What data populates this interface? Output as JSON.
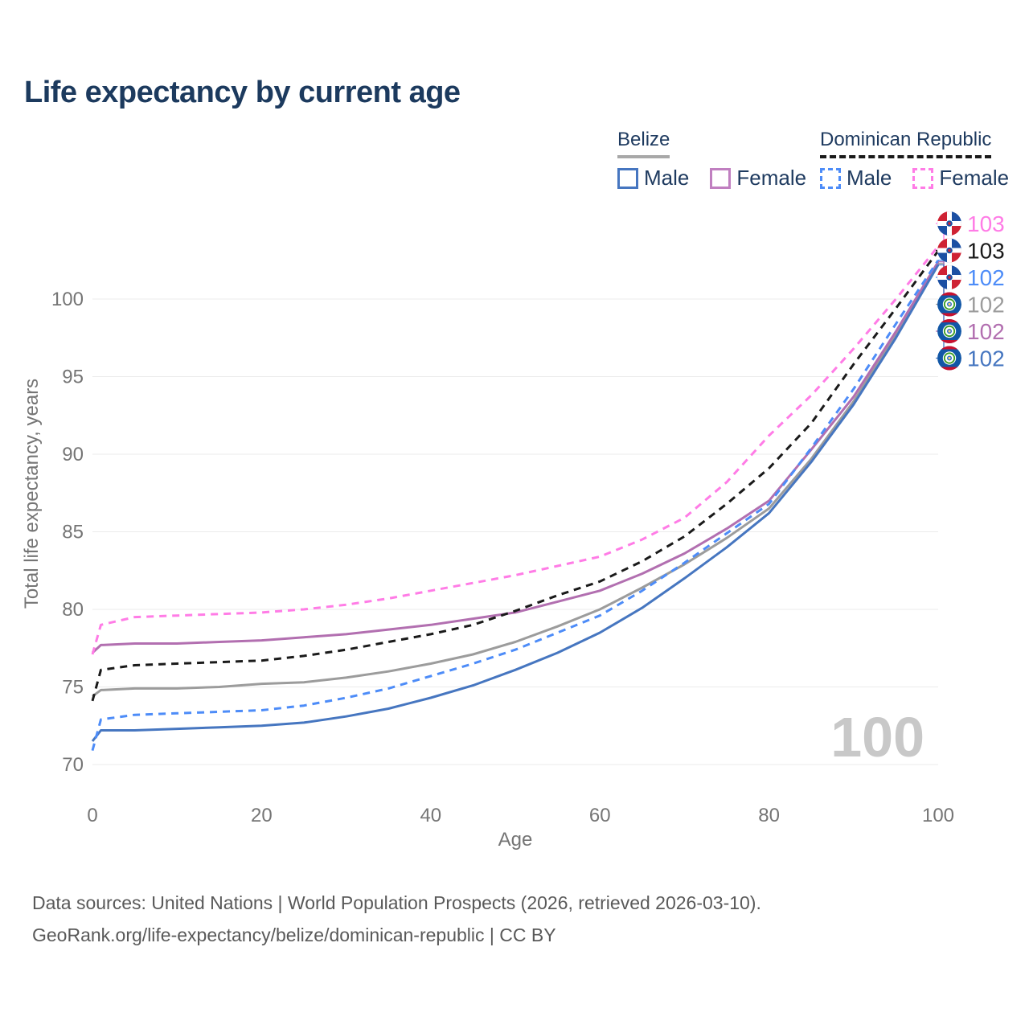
{
  "header": {
    "title": "Life expectancy by current age"
  },
  "legend": {
    "groups": [
      {
        "label": "Belize",
        "underline_style": "solid",
        "underline_color": "#a8a8a8",
        "items": [
          {
            "label": "Male",
            "color": "#4676c0",
            "dash": false
          },
          {
            "label": "Female",
            "color": "#c07fc0",
            "dash": false
          }
        ]
      },
      {
        "label": "Dominican Republic",
        "underline_style": "dashed",
        "underline_color": "#1a1a1a",
        "items": [
          {
            "label": "Male",
            "color": "#4d8cf8",
            "dash": true
          },
          {
            "label": "Female",
            "color": "#ff7ce6",
            "dash": true
          }
        ]
      }
    ]
  },
  "chart_data": {
    "type": "line",
    "title": "Life expectancy by current age",
    "xlabel": "Age",
    "ylabel": "Total life expectancy, years",
    "xlim": [
      0,
      100
    ],
    "ylim": [
      70,
      103.5
    ],
    "x_ticks": [
      0,
      20,
      40,
      60,
      80,
      100
    ],
    "y_ticks": [
      70,
      75,
      80,
      85,
      90,
      95,
      100
    ],
    "grid": "horizontal",
    "legend_position": "top-right",
    "age_label_watermark": "100",
    "x": [
      0,
      1,
      5,
      10,
      15,
      20,
      25,
      30,
      35,
      40,
      45,
      50,
      55,
      60,
      65,
      70,
      75,
      80,
      85,
      90,
      95,
      100
    ],
    "series": [
      {
        "id": "dr_female",
        "name": "Dominican Republic Female",
        "country": "Dominican Republic",
        "sex": "Female",
        "style": "dashed",
        "color": "#ff7ce6",
        "end_label": "103",
        "values": [
          77.1,
          79.0,
          79.5,
          79.6,
          79.7,
          79.8,
          80.0,
          80.3,
          80.7,
          81.2,
          81.7,
          82.2,
          82.8,
          83.4,
          84.5,
          85.9,
          88.2,
          91.2,
          93.8,
          96.8,
          100.0,
          103.4
        ]
      },
      {
        "id": "dr_both",
        "name": "Dominican Republic Both sexes",
        "country": "Dominican Republic",
        "sex": "Both",
        "style": "dashed",
        "color": "#1a1a1a",
        "end_label": "103",
        "values": [
          74.1,
          76.1,
          76.4,
          76.5,
          76.6,
          76.7,
          77.0,
          77.4,
          77.9,
          78.4,
          79.0,
          79.9,
          80.9,
          81.8,
          83.1,
          84.7,
          86.8,
          89.1,
          92.0,
          95.8,
          99.4,
          103.1
        ]
      },
      {
        "id": "dr_male",
        "name": "Dominican Republic Male",
        "country": "Dominican Republic",
        "sex": "Male",
        "style": "dashed",
        "color": "#4d8cf8",
        "end_label": "102",
        "values": [
          70.9,
          72.9,
          73.2,
          73.3,
          73.4,
          73.5,
          73.8,
          74.3,
          74.9,
          75.7,
          76.5,
          77.4,
          78.5,
          79.6,
          81.2,
          83.0,
          84.9,
          86.8,
          90.4,
          94.2,
          98.4,
          102.5
        ]
      },
      {
        "id": "bz_both",
        "name": "Belize Both sexes",
        "country": "Belize",
        "sex": "Both",
        "style": "solid",
        "color": "#9c9c9c",
        "end_label": "102",
        "values": [
          74.4,
          74.8,
          74.9,
          74.9,
          75.0,
          75.2,
          75.3,
          75.6,
          76.0,
          76.5,
          77.1,
          77.9,
          78.9,
          80.0,
          81.4,
          82.9,
          84.6,
          86.5,
          89.7,
          93.4,
          97.7,
          102.3
        ]
      },
      {
        "id": "bz_female",
        "name": "Belize Female",
        "country": "Belize",
        "sex": "Female",
        "style": "solid",
        "color": "#b26fb0",
        "end_label": "102",
        "values": [
          77.2,
          77.7,
          77.8,
          77.8,
          77.9,
          78.0,
          78.2,
          78.4,
          78.7,
          79.0,
          79.4,
          79.8,
          80.5,
          81.2,
          82.3,
          83.6,
          85.2,
          87.0,
          90.3,
          93.7,
          97.9,
          102.4
        ]
      },
      {
        "id": "bz_male",
        "name": "Belize Male",
        "country": "Belize",
        "sex": "Male",
        "style": "solid",
        "color": "#4676c0",
        "end_label": "102",
        "values": [
          71.5,
          72.2,
          72.2,
          72.3,
          72.4,
          72.5,
          72.7,
          73.1,
          73.6,
          74.3,
          75.1,
          76.1,
          77.2,
          78.5,
          80.1,
          82.0,
          84.0,
          86.2,
          89.5,
          93.2,
          97.5,
          102.2
        ]
      }
    ],
    "end_label_rows": [
      "dr_female",
      "dr_both",
      "dr_male",
      "bz_both",
      "bz_female",
      "bz_male"
    ]
  },
  "footer": {
    "line1": "Data sources: United Nations | World Population Prospects (2026, retrieved 2026-03-10).",
    "line2": "GeoRank.org/life-expectancy/belize/dominican-republic | CC BY"
  }
}
